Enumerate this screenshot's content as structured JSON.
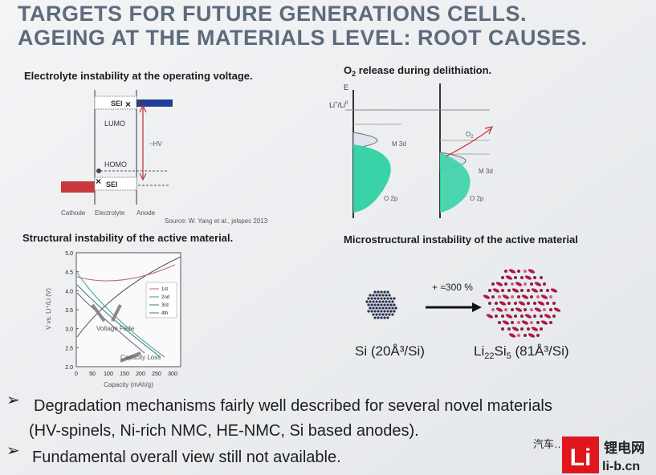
{
  "header": {
    "title_lines": [
      "TARGETS FOR FUTURE GENERATIONS CELLS.",
      "AGEING AT THE MATERIALS LEVEL: ROOT CAUSES."
    ]
  },
  "panels": [
    {
      "heading": "Electrolyte instability at the operating voltage.",
      "labels": {
        "sei_top": "SEI",
        "lumo": "LUMO",
        "homo": "HOMO",
        "sei_bottom": "SEI",
        "hv": "~HV",
        "cathode": "Cathode",
        "electrolyte": "Electrolyte",
        "anode": "Anode"
      },
      "source": "Source: W. Yang et al., jelspec 2013"
    },
    {
      "heading_parts": [
        "O",
        "2",
        " release during delithiation."
      ],
      "labels": {
        "energy": "E",
        "reference_parts": [
          "Li",
          "+",
          "/Li",
          "0"
        ],
        "m3d_left": "M 3d",
        "o2p_left": "O 2p",
        "m3d_right": "M 3d",
        "o2p_right": "O 2p",
        "oxygen_parts": [
          "O",
          "2"
        ]
      }
    },
    {
      "heading": "Structural instability of the active material.",
      "plot": {
        "y_label": "V vs. Li⁺/Li (V)",
        "x_label": "Capacity (mAh/g)",
        "yticks": [
          "5.0",
          "4.5",
          "4.0",
          "3.5",
          "3.0",
          "2.5",
          "2.0"
        ],
        "xticks": [
          "0",
          "50",
          "100",
          "150",
          "200",
          "250",
          "300"
        ],
        "legend": [
          "1st",
          "2nd",
          "3rd",
          "4th"
        ],
        "annotations": [
          "Voltage Fade",
          "Capacity Loss"
        ]
      }
    },
    {
      "heading": "Microstructural instability of the active material",
      "expansion": "+ ≈300 %",
      "si_label": "Si   (20Å³/Si)",
      "lisi_parts": [
        "Li",
        "22",
        "Si",
        "5",
        " (81Å³/Si)"
      ]
    }
  ],
  "bullets": [
    {
      "lines": [
        "Degradation mechanisms fairly well described for several novel materials",
        "(HV-spinels, Ni-rich NMC, HE-NMC, Si based anodes)."
      ]
    },
    {
      "lines": [
        "Fundamental overall view still not available."
      ]
    }
  ],
  "watermark": {
    "source": "汽车…",
    "logo": "Li",
    "site_name": "锂电网",
    "site_url": "li-b.cn"
  }
}
